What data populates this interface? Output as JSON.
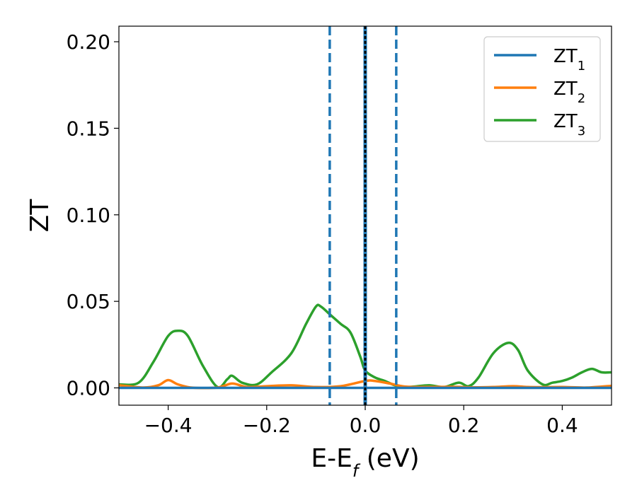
{
  "chart_data": {
    "type": "line",
    "xlabel": {
      "main": "E-E",
      "sub": "f",
      "unit": " (eV)"
    },
    "ylabel": "ZT",
    "xlim": [
      -0.5,
      0.5
    ],
    "ylim": [
      -0.01,
      0.209
    ],
    "x_ticks": [
      -0.4,
      -0.2,
      0.0,
      0.2,
      0.4
    ],
    "x_tick_labels": [
      "−0.4",
      "−0.2",
      "0.0",
      "0.2",
      "0.4"
    ],
    "y_ticks": [
      0.0,
      0.05,
      0.1,
      0.15,
      0.2
    ],
    "y_tick_labels": [
      "0.00",
      "0.05",
      "0.10",
      "0.15",
      "0.20"
    ],
    "legend_position": "top-right",
    "series": [
      {
        "name": "ZT",
        "sub": "1",
        "color": "#1f77b4",
        "x": [
          -0.5,
          0.5
        ],
        "y": [
          0.0,
          0.0
        ]
      },
      {
        "name": "ZT",
        "sub": "2",
        "color": "#ff7f0e",
        "x": [
          -0.5,
          -0.45,
          -0.42,
          -0.4,
          -0.38,
          -0.35,
          -0.3,
          -0.27,
          -0.24,
          -0.2,
          -0.15,
          -0.1,
          -0.05,
          0.0,
          0.02,
          0.05,
          0.08,
          0.12,
          0.18,
          0.22,
          0.26,
          0.3,
          0.33,
          0.36,
          0.4,
          0.45,
          0.5
        ],
        "y": [
          0.0015,
          0.0002,
          0.0015,
          0.0045,
          0.002,
          0.0001,
          0.0002,
          0.0025,
          0.0005,
          0.001,
          0.0015,
          0.0005,
          0.001,
          0.004,
          0.004,
          0.0025,
          0.0008,
          0.0005,
          0.0006,
          0.0003,
          0.0005,
          0.001,
          0.0005,
          0.0004,
          0.0005,
          0.0002,
          0.0012
        ]
      },
      {
        "name": "ZT",
        "sub": "3",
        "color": "#2ca02c",
        "x": [
          -0.5,
          -0.46,
          -0.43,
          -0.4,
          -0.38,
          -0.36,
          -0.33,
          -0.3,
          -0.28,
          -0.27,
          -0.25,
          -0.22,
          -0.19,
          -0.15,
          -0.12,
          -0.1,
          -0.09,
          -0.07,
          -0.05,
          -0.03,
          -0.01,
          0.0,
          0.02,
          0.04,
          0.06,
          0.08,
          0.1,
          0.13,
          0.16,
          0.19,
          0.21,
          0.23,
          0.26,
          0.29,
          0.31,
          0.33,
          0.36,
          0.38,
          0.4,
          0.42,
          0.44,
          0.46,
          0.48,
          0.5
        ],
        "y": [
          0.002,
          0.003,
          0.015,
          0.03,
          0.033,
          0.03,
          0.013,
          0.0005,
          0.005,
          0.007,
          0.003,
          0.002,
          0.009,
          0.02,
          0.037,
          0.047,
          0.047,
          0.042,
          0.037,
          0.032,
          0.018,
          0.01,
          0.006,
          0.004,
          0.0015,
          0.0005,
          0.0008,
          0.0015,
          0.0005,
          0.003,
          0.001,
          0.006,
          0.02,
          0.026,
          0.022,
          0.01,
          0.002,
          0.003,
          0.004,
          0.006,
          0.009,
          0.011,
          0.009,
          0.009
        ]
      }
    ],
    "vlines": [
      {
        "x": -0.072,
        "style": "dashed",
        "color": "#1f77b4"
      },
      {
        "x": 0.0,
        "style": "solid",
        "color": "#1f77b4"
      },
      {
        "x": 0.0,
        "style": "dotted",
        "color": "#000000"
      },
      {
        "x": 0.063,
        "style": "dashed",
        "color": "#1f77b4"
      }
    ]
  }
}
